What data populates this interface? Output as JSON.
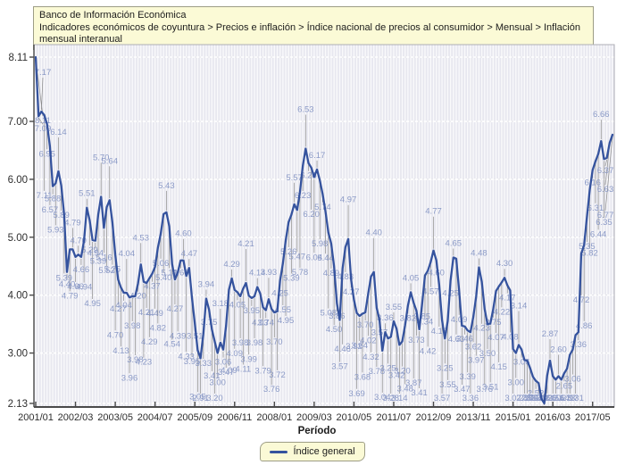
{
  "header": {
    "title": "Banco de Información Económica",
    "breadcrumb": "Indicadores económicos de coyuntura > Precios e inflación > Índice nacional de precios al consumidor > Mensual > Inflación mensual interanual"
  },
  "chart_data": {
    "type": "line",
    "title": "",
    "xlabel": "Período",
    "ylabel": "",
    "x_start": "2001/01",
    "x_end": "2017/12",
    "x_tick_step_months": 14,
    "x_tick_labels": [
      "2001/01",
      "2002/03",
      "2003/05",
      "2004/07",
      "2005/09",
      "2006/11",
      "2008/01",
      "2009/03",
      "2010/05",
      "2011/07",
      "2012/09",
      "2013/11",
      "2015/01",
      "2016/03",
      "2017/05"
    ],
    "y_ticks": [
      "8.11",
      "7.00",
      "6.00",
      "5.00",
      "4.00",
      "3.00",
      "2.13"
    ],
    "ylim": [
      2.13,
      8.11
    ],
    "grid": true,
    "point_labels_visible": true,
    "legend_position": "bottom",
    "series": [
      {
        "name": "Índice general",
        "values": [
          8.11,
          7.09,
          7.17,
          7.11,
          6.95,
          6.57,
          5.88,
          5.93,
          6.14,
          5.89,
          5.39,
          4.4,
          4.79,
          4.79,
          4.66,
          4.7,
          4.66,
          4.94,
          5.51,
          5.29,
          4.95,
          4.94,
          5.39,
          5.7,
          5.16,
          5.52,
          5.64,
          5.25,
          4.7,
          4.27,
          4.13,
          4.04,
          4.04,
          3.96,
          3.98,
          3.98,
          4.2,
          4.53,
          4.23,
          4.21,
          4.29,
          4.37,
          4.49,
          4.82,
          5.06,
          5.4,
          5.43,
          5.19,
          4.54,
          4.27,
          4.39,
          4.6,
          4.6,
          4.33,
          4.47,
          3.95,
          3.51,
          3.05,
          2.91,
          3.33,
          3.94,
          3.75,
          3.41,
          3.2,
          3.0,
          3.18,
          3.06,
          3.47,
          4.09,
          4.29,
          4.09,
          4.05,
          3.98,
          4.11,
          4.21,
          3.99,
          3.95,
          3.98,
          4.14,
          4.03,
          3.79,
          3.74,
          3.93,
          3.76,
          3.7,
          3.72,
          4.25,
          4.55,
          4.95,
          5.26,
          5.39,
          5.57,
          5.47,
          5.78,
          6.23,
          6.53,
          6.28,
          6.2,
          6.04,
          6.17,
          5.98,
          5.74,
          5.44,
          5.08,
          4.89,
          4.5,
          3.86,
          3.57,
          4.46,
          4.83,
          4.97,
          4.27,
          3.92,
          3.69,
          3.64,
          3.68,
          3.7,
          4.02,
          4.32,
          4.4,
          3.78,
          3.57,
          3.04,
          3.36,
          3.25,
          3.28,
          3.55,
          3.42,
          3.14,
          3.2,
          3.48,
          3.82,
          4.05,
          3.87,
          3.73,
          3.41,
          3.85,
          4.34,
          4.42,
          4.57,
          4.77,
          4.6,
          4.18,
          3.57,
          3.25,
          3.55,
          4.25,
          4.65,
          4.63,
          4.09,
          3.47,
          3.46,
          3.39,
          3.36,
          3.62,
          3.97,
          4.48,
          4.23,
          3.76,
          3.5,
          3.51,
          3.75,
          4.07,
          4.15,
          4.22,
          4.3,
          4.17,
          4.08,
          3.07,
          3.0,
          3.14,
          3.06,
          2.88,
          2.87,
          2.74,
          2.59,
          2.52,
          2.48,
          2.21,
          2.13,
          2.61,
          2.87,
          2.6,
          2.54,
          2.6,
          2.54,
          2.65,
          2.73,
          2.97,
          3.06,
          3.31,
          3.36,
          4.72,
          4.86,
          5.35,
          5.82,
          6.16,
          6.31,
          6.44,
          6.66,
          6.35,
          6.37,
          6.63,
          6.77
        ]
      }
    ],
    "colors": {
      "line": "#35539e",
      "point_label": "#8b9ac7",
      "leader": "#8a8a8a",
      "plot_bg": "#e7e7ef",
      "grid": "#ffffff",
      "axis": "#4a4a4a",
      "panel_bg": "#fbfad6",
      "panel_border": "#9d9d85"
    }
  },
  "legend": {
    "items": [
      {
        "label": "Índice general",
        "color": "#35539e"
      }
    ]
  }
}
